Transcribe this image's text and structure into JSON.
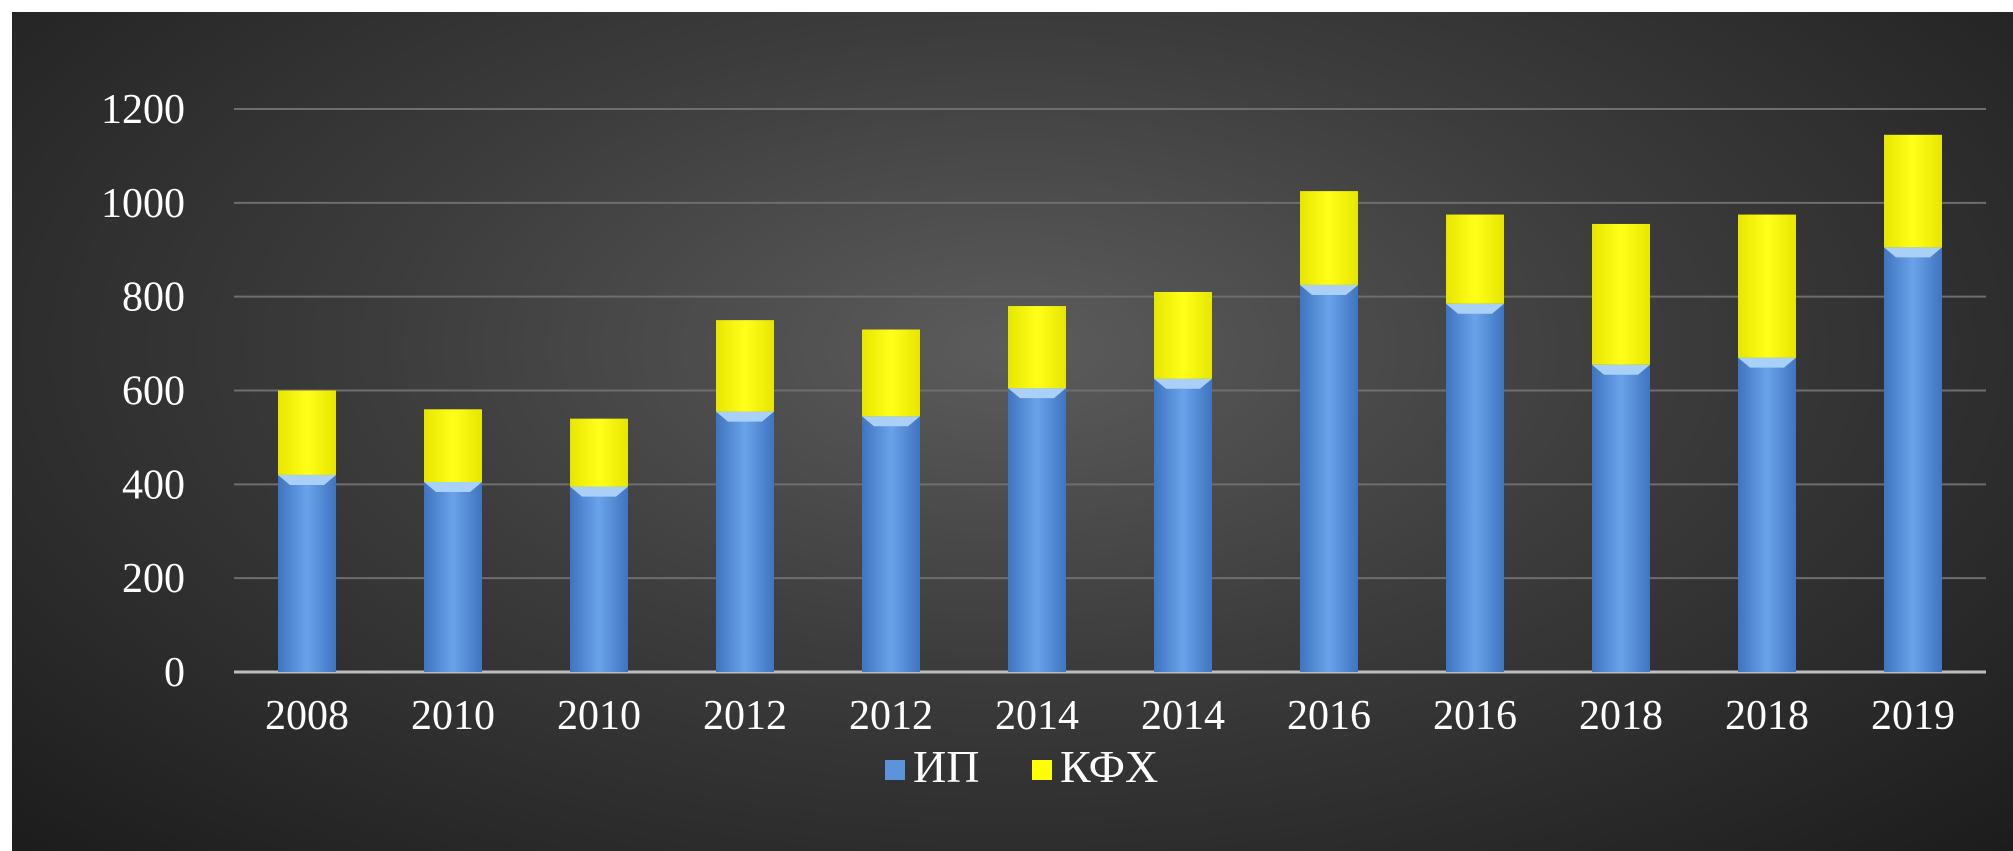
{
  "chart_data": {
    "type": "bar",
    "stacked": true,
    "categories": [
      "2008",
      "2010",
      "2010",
      "2012",
      "2012",
      "2014",
      "2014",
      "2016",
      "2016",
      "2018",
      "2018",
      "2019"
    ],
    "series": [
      {
        "name": "ИП",
        "color": "#5b94db",
        "values": [
          420,
          405,
          395,
          555,
          545,
          605,
          625,
          825,
          785,
          655,
          670,
          905
        ]
      },
      {
        "name": "КФХ",
        "color": "#ffff00",
        "values": [
          180,
          155,
          145,
          195,
          185,
          175,
          185,
          200,
          190,
          300,
          305,
          240
        ]
      }
    ],
    "ylim": [
      0,
      1200
    ],
    "yticks": [
      0,
      200,
      400,
      600,
      800,
      1000,
      1200
    ],
    "grid": true,
    "legend_position": "bottom",
    "background": "#3a3a3a"
  }
}
